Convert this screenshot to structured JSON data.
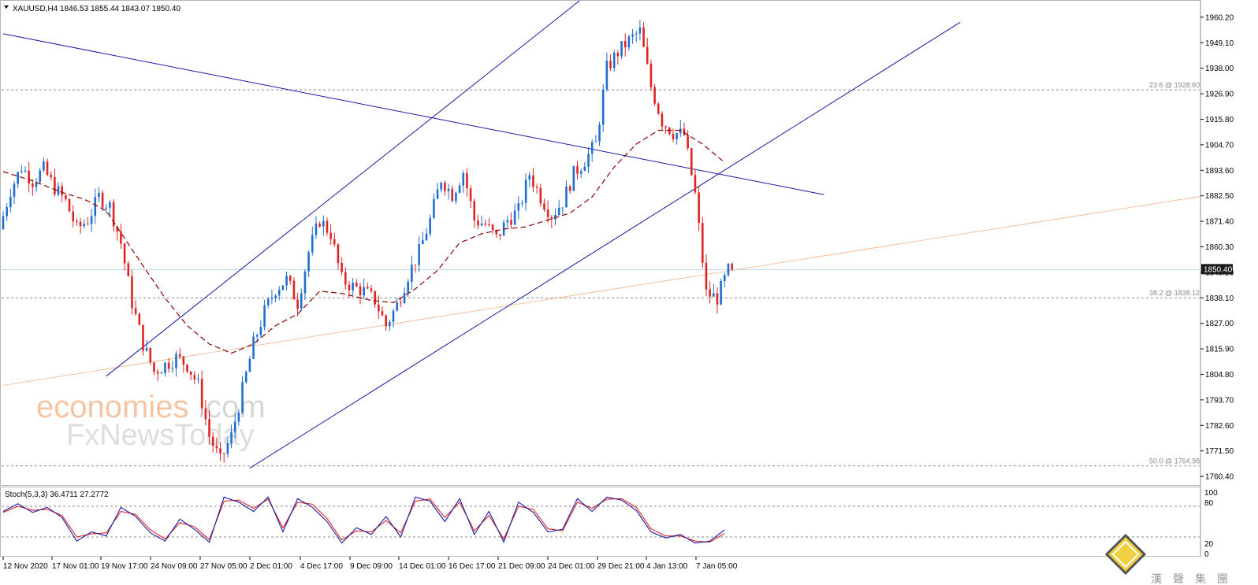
{
  "header": {
    "symbol_line": "XAUUSD,H4  1846.53 1855.44 1843.07 1850.40"
  },
  "oscillator": {
    "label": "Stoch(5,3,3) 36.4711 27.2772",
    "levels": [
      "100",
      "80",
      "20",
      "0"
    ]
  },
  "price_badge": "1850.40",
  "watermark": {
    "line1_a": "economies",
    "line1_b": ".com",
    "line2": "FxNewsToday"
  },
  "logo": {
    "chars": [
      "漢",
      "聲",
      "集",
      "團"
    ]
  },
  "colors": {
    "bull": "#1f6fd1",
    "bear": "#e02424",
    "channel": "#1a1aa6",
    "ma": "#8b0000",
    "fib": "#8a8a8a",
    "trend_orange": "#f4b183",
    "stoch_k": "#1a1aa6",
    "stoch_d": "#e02424"
  },
  "chart_data": {
    "type": "candlestick",
    "symbol": "XAUUSD",
    "timeframe": "H4",
    "ohlc_last": {
      "open": 1846.53,
      "high": 1855.44,
      "low": 1843.07,
      "close": 1850.4
    },
    "ylim": [
      1757,
      1967
    ],
    "y_ticks": [
      "1960.20",
      "1949.10",
      "1938.00",
      "1926.90",
      "1915.80",
      "1904.70",
      "1893.60",
      "1882.50",
      "1871.40",
      "1860.30",
      "1849.20",
      "1838.10",
      "1827.00",
      "1815.90",
      "1804.80",
      "1793.70",
      "1782.60",
      "1771.50",
      "1760.40"
    ],
    "x_ticks": [
      "12 Nov 2020",
      "17 Nov 01:00",
      "19 Nov 17:00",
      "24 Nov 09:00",
      "27 Nov 05:00",
      "2 Dec 01:00",
      "4 Dec 17:00",
      "9 Dec 09:00",
      "14 Dec 01:00",
      "16 Dec 17:00",
      "21 Dec 09:00",
      "24 Dec 01:00",
      "29 Dec 21:00",
      "4 Jan 13:00",
      "7 Jan 05:00"
    ],
    "fib_levels": [
      {
        "label": "23.6 @ 1928.60",
        "value": 1928.6
      },
      {
        "label": "38.2 @ 1838.12",
        "value": 1838.12
      },
      {
        "label": "50.0 @ 1764.98",
        "value": 1764.98
      }
    ],
    "current_price": 1850.4,
    "price_path": [
      [
        0,
        1868
      ],
      [
        3,
        1885
      ],
      [
        6,
        1895
      ],
      [
        9,
        1889
      ],
      [
        12,
        1894
      ],
      [
        15,
        1886
      ],
      [
        18,
        1880
      ],
      [
        21,
        1868
      ],
      [
        24,
        1872
      ],
      [
        27,
        1882
      ],
      [
        30,
        1878
      ],
      [
        33,
        1862
      ],
      [
        36,
        1836
      ],
      [
        39,
        1818
      ],
      [
        42,
        1806
      ],
      [
        45,
        1809
      ],
      [
        48,
        1812
      ],
      [
        51,
        1809
      ],
      [
        54,
        1800
      ],
      [
        57,
        1778
      ],
      [
        60,
        1767
      ],
      [
        63,
        1778
      ],
      [
        66,
        1798
      ],
      [
        69,
        1818
      ],
      [
        72,
        1832
      ],
      [
        75,
        1842
      ],
      [
        78,
        1846
      ],
      [
        81,
        1836
      ],
      [
        84,
        1858
      ],
      [
        87,
        1872
      ],
      [
        90,
        1866
      ],
      [
        93,
        1846
      ],
      [
        96,
        1843
      ],
      [
        99,
        1841
      ],
      [
        102,
        1837
      ],
      [
        105,
        1826
      ],
      [
        108,
        1835
      ],
      [
        111,
        1848
      ],
      [
        114,
        1858
      ],
      [
        117,
        1872
      ],
      [
        120,
        1890
      ],
      [
        123,
        1883
      ],
      [
        126,
        1893
      ],
      [
        129,
        1872
      ],
      [
        132,
        1870
      ],
      [
        135,
        1864
      ],
      [
        138,
        1872
      ],
      [
        141,
        1876
      ],
      [
        144,
        1892
      ],
      [
        147,
        1882
      ],
      [
        150,
        1874
      ],
      [
        153,
        1880
      ],
      [
        156,
        1892
      ],
      [
        159,
        1898
      ],
      [
        162,
        1905
      ],
      [
        165,
        1938
      ],
      [
        168,
        1945
      ],
      [
        171,
        1950
      ],
      [
        174,
        1954
      ],
      [
        177,
        1930
      ],
      [
        180,
        1915
      ],
      [
        183,
        1910
      ],
      [
        186,
        1909
      ],
      [
        189,
        1883
      ],
      [
        192,
        1840
      ],
      [
        195,
        1838
      ],
      [
        198,
        1850
      ]
    ],
    "ma_path": [
      [
        0,
        1893
      ],
      [
        8,
        1889
      ],
      [
        16,
        1884
      ],
      [
        22,
        1881
      ],
      [
        28,
        1876
      ],
      [
        33,
        1864
      ],
      [
        38,
        1852
      ],
      [
        44,
        1838
      ],
      [
        50,
        1826
      ],
      [
        56,
        1818
      ],
      [
        62,
        1814
      ],
      [
        68,
        1818
      ],
      [
        74,
        1826
      ],
      [
        80,
        1831
      ],
      [
        86,
        1841
      ],
      [
        92,
        1840
      ],
      [
        100,
        1837
      ],
      [
        106,
        1836
      ],
      [
        112,
        1842
      ],
      [
        118,
        1850
      ],
      [
        124,
        1862
      ],
      [
        130,
        1866
      ],
      [
        136,
        1868
      ],
      [
        142,
        1869
      ],
      [
        148,
        1872
      ],
      [
        154,
        1875
      ],
      [
        160,
        1882
      ],
      [
        166,
        1895
      ],
      [
        172,
        1905
      ],
      [
        178,
        1911
      ],
      [
        184,
        1911
      ],
      [
        190,
        1905
      ],
      [
        196,
        1897
      ]
    ],
    "stoch_k": [
      [
        0,
        70
      ],
      [
        4,
        85
      ],
      [
        8,
        68
      ],
      [
        12,
        78
      ],
      [
        16,
        58
      ],
      [
        20,
        12
      ],
      [
        24,
        30
      ],
      [
        28,
        22
      ],
      [
        32,
        78
      ],
      [
        36,
        60
      ],
      [
        40,
        28
      ],
      [
        44,
        12
      ],
      [
        48,
        55
      ],
      [
        52,
        35
      ],
      [
        56,
        10
      ],
      [
        60,
        98
      ],
      [
        64,
        88
      ],
      [
        68,
        70
      ],
      [
        72,
        98
      ],
      [
        76,
        30
      ],
      [
        80,
        95
      ],
      [
        84,
        78
      ],
      [
        88,
        50
      ],
      [
        92,
        8
      ],
      [
        96,
        38
      ],
      [
        100,
        25
      ],
      [
        104,
        60
      ],
      [
        108,
        20
      ],
      [
        112,
        98
      ],
      [
        116,
        90
      ],
      [
        120,
        50
      ],
      [
        124,
        95
      ],
      [
        128,
        25
      ],
      [
        132,
        70
      ],
      [
        136,
        10
      ],
      [
        140,
        88
      ],
      [
        144,
        68
      ],
      [
        148,
        30
      ],
      [
        152,
        35
      ],
      [
        156,
        95
      ],
      [
        160,
        70
      ],
      [
        164,
        98
      ],
      [
        168,
        92
      ],
      [
        172,
        72
      ],
      [
        176,
        30
      ],
      [
        180,
        18
      ],
      [
        184,
        25
      ],
      [
        188,
        8
      ],
      [
        192,
        12
      ],
      [
        196,
        34
      ]
    ],
    "stoch_d": [
      [
        0,
        68
      ],
      [
        4,
        80
      ],
      [
        8,
        72
      ],
      [
        12,
        74
      ],
      [
        16,
        62
      ],
      [
        20,
        20
      ],
      [
        24,
        26
      ],
      [
        28,
        28
      ],
      [
        32,
        70
      ],
      [
        36,
        64
      ],
      [
        40,
        34
      ],
      [
        44,
        16
      ],
      [
        48,
        48
      ],
      [
        52,
        40
      ],
      [
        56,
        15
      ],
      [
        60,
        90
      ],
      [
        64,
        92
      ],
      [
        68,
        76
      ],
      [
        72,
        94
      ],
      [
        76,
        38
      ],
      [
        80,
        88
      ],
      [
        84,
        84
      ],
      [
        88,
        56
      ],
      [
        92,
        14
      ],
      [
        96,
        32
      ],
      [
        100,
        30
      ],
      [
        104,
        52
      ],
      [
        108,
        28
      ],
      [
        112,
        90
      ],
      [
        116,
        94
      ],
      [
        120,
        58
      ],
      [
        124,
        88
      ],
      [
        128,
        32
      ],
      [
        132,
        62
      ],
      [
        136,
        16
      ],
      [
        140,
        80
      ],
      [
        144,
        74
      ],
      [
        148,
        36
      ],
      [
        152,
        32
      ],
      [
        156,
        88
      ],
      [
        160,
        76
      ],
      [
        164,
        94
      ],
      [
        168,
        95
      ],
      [
        172,
        78
      ],
      [
        176,
        36
      ],
      [
        180,
        22
      ],
      [
        184,
        22
      ],
      [
        188,
        12
      ],
      [
        192,
        10
      ],
      [
        196,
        27
      ]
    ],
    "channel_lines": [
      {
        "from": [
          28,
          1804
        ],
        "to": [
          198,
          2020
        ]
      },
      {
        "from": [
          67,
          1764
        ],
        "to": [
          260,
          1958
        ]
      }
    ],
    "resistance_line": {
      "from": [
        0,
        1953
      ],
      "to": [
        223,
        1883
      ]
    },
    "orange_line": {
      "from": [
        0,
        1800
      ],
      "to": [
        356,
        1890
      ]
    }
  }
}
